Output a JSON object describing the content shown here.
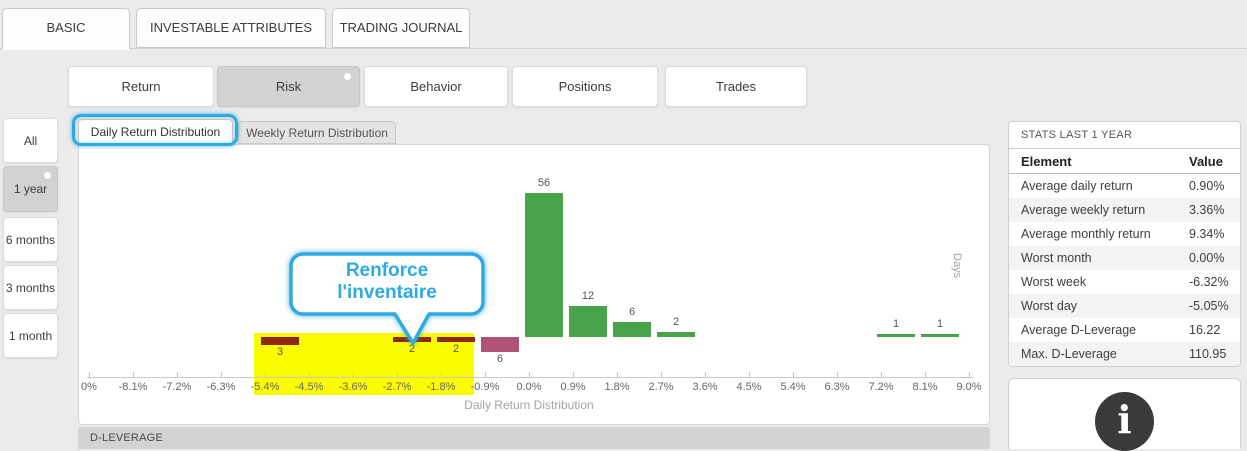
{
  "app": {
    "top_tabs": [
      {
        "label": "BASIC",
        "active": true
      },
      {
        "label": "INVESTABLE ATTRIBUTES",
        "active": false
      },
      {
        "label": "TRADING JOURNAL",
        "active": false
      }
    ],
    "view_buttons": [
      {
        "label": "Return",
        "selected": false
      },
      {
        "label": "Risk",
        "selected": true
      },
      {
        "label": "Behavior",
        "selected": false
      },
      {
        "label": "Positions",
        "selected": false
      },
      {
        "label": "Trades",
        "selected": false
      }
    ],
    "period_buttons": [
      {
        "label": "All",
        "selected": false
      },
      {
        "label": "1 year",
        "selected": true
      },
      {
        "label": "6 months",
        "selected": false
      },
      {
        "label": "3 months",
        "selected": false
      },
      {
        "label": "1 month",
        "selected": false
      }
    ],
    "chart_tabs": [
      {
        "label": "Daily Return Distribution",
        "active": true,
        "highlighted": true
      },
      {
        "label": "Weekly Return Distribution",
        "active": false
      }
    ],
    "section_footer": "D-LEVERAGE"
  },
  "callout": {
    "text_lines": [
      "Renforce",
      "l'inventaire"
    ],
    "color": "#2fa9e1"
  },
  "chart_data": {
    "type": "bar",
    "title": "",
    "xlabel": "Daily Return Distribution",
    "ylabel": "Days",
    "bin_width": "0.9%",
    "tick_labels": [
      "0%",
      "-8.1%",
      "-7.2%",
      "-6.3%",
      "-5.4%",
      "-4.5%",
      "-3.6%",
      "-2.7%",
      "-1.8%",
      "-0.9%",
      "0.0%",
      "0.9%",
      "1.8%",
      "2.7%",
      "3.6%",
      "4.5%",
      "5.4%",
      "6.3%",
      "7.2%",
      "8.1%",
      "9.0%"
    ],
    "bins": [
      {
        "from": "-5.4%",
        "to": "-4.5%",
        "days": 3,
        "direction": "down",
        "color": "dark_red"
      },
      {
        "from": "-2.7%",
        "to": "-1.8%",
        "days": 2,
        "direction": "down",
        "color": "dark_red"
      },
      {
        "from": "-1.8%",
        "to": "-0.9%",
        "days": 2,
        "direction": "down",
        "color": "dark_red"
      },
      {
        "from": "-0.9%",
        "to": "0.0%",
        "days": 6,
        "direction": "down",
        "color": "magenta"
      },
      {
        "from": "0.0%",
        "to": "0.9%",
        "days": 56,
        "direction": "up",
        "color": "green"
      },
      {
        "from": "0.9%",
        "to": "1.8%",
        "days": 12,
        "direction": "up",
        "color": "green"
      },
      {
        "from": "1.8%",
        "to": "2.7%",
        "days": 6,
        "direction": "up",
        "color": "green"
      },
      {
        "from": "2.7%",
        "to": "3.6%",
        "days": 2,
        "direction": "up",
        "color": "green"
      },
      {
        "from": "7.2%",
        "to": "8.1%",
        "days": 1,
        "direction": "up",
        "color": "green"
      },
      {
        "from": "8.1%",
        "to": "9.0%",
        "days": 1,
        "direction": "up",
        "color": "green"
      }
    ],
    "highlight_region": {
      "from": "-5.4%",
      "to": "-0.9%",
      "color": "#fcfc00"
    },
    "colors": {
      "green": "#4aa34a",
      "magenta": "#af5276",
      "dark_red": "#8e2812"
    },
    "legend": "none",
    "grid": false
  },
  "stats_panel": {
    "title": "STATS LAST 1 YEAR",
    "columns": [
      "Element",
      "Value"
    ],
    "rows": [
      {
        "element": "Average daily return",
        "value": "0.90%"
      },
      {
        "element": "Average weekly return",
        "value": "3.36%"
      },
      {
        "element": "Average monthly return",
        "value": "9.34%"
      },
      {
        "element": "Worst month",
        "value": "0.00%"
      },
      {
        "element": "Worst week",
        "value": "-6.32%"
      },
      {
        "element": "Worst day",
        "value": "-5.05%"
      },
      {
        "element": "Average D-Leverage",
        "value": "16.22"
      },
      {
        "element": "Max. D-Leverage",
        "value": "110.95"
      }
    ]
  },
  "info_icon": "i"
}
